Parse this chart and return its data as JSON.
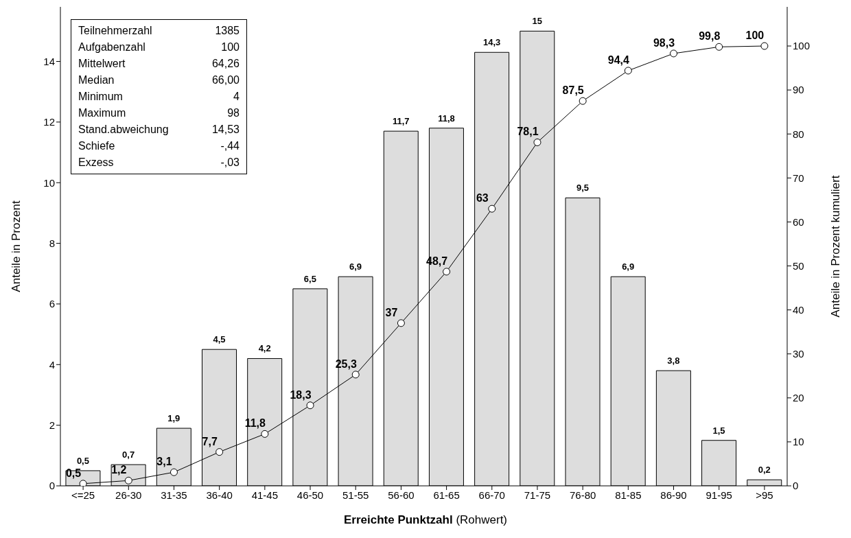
{
  "chart_data": {
    "type": "bar",
    "categories": [
      "<=25",
      "26-30",
      "31-35",
      "36-40",
      "41-45",
      "46-50",
      "51-55",
      "56-60",
      "61-65",
      "66-70",
      "71-75",
      "76-80",
      "81-85",
      "86-90",
      "91-95",
      ">95"
    ],
    "series": [
      {
        "color": "#dddddd",
        "values": [
          0.5,
          0.7,
          1.9,
          4.5,
          4.2,
          6.5,
          6.9,
          11.7,
          11.8,
          14.3,
          15,
          9.5,
          6.9,
          3.8,
          1.5,
          0.2
        ],
        "value_labels": [
          "0,5",
          "0,7",
          "1,9",
          "4,5",
          "4,2",
          "6,5",
          "6,9",
          "11,7",
          "11,8",
          "14,3",
          "15",
          "9,5",
          "6,9",
          "3,8",
          "1,5",
          "0,2"
        ]
      },
      {
        "type": "line",
        "axis": "y2",
        "color": "#000000",
        "values": [
          0.5,
          1.2,
          3.1,
          7.7,
          11.8,
          18.3,
          25.3,
          37,
          48.7,
          63,
          78.1,
          87.5,
          94.4,
          98.3,
          99.8,
          100
        ],
        "value_labels": [
          "0,5",
          "1,2",
          "3,1",
          "7,7",
          "11,8",
          "18,3",
          "25,3",
          "37",
          "48,7",
          "63",
          "78,1",
          "87,5",
          "94,4",
          "98,3",
          "99,8",
          "100"
        ]
      }
    ],
    "xlabel": "Erreichte Punktzahl (Rohwert)",
    "ylabel": "Anteile in Prozent",
    "y2label": "Anteile in Prozent kumuliert",
    "ylim": [
      0,
      15.8
    ],
    "yticks": [
      0,
      2,
      4,
      6,
      8,
      10,
      12,
      14
    ],
    "y2lim": [
      0,
      108.9
    ],
    "y2ticks": [
      0,
      10,
      20,
      30,
      40,
      50,
      60,
      70,
      80,
      90,
      100
    ],
    "marker": "circle",
    "annotations": [
      "Teilnehmerzahl\t1385",
      "Aufgabenzahl\t100",
      "Mittelwert\t64,26",
      "Median\t66,00",
      "Minimum\t4",
      "Maximum\t98",
      "Stand.abweichung\t14,53",
      "Schiefe\t-,44",
      "Exzess\t-,03"
    ]
  }
}
